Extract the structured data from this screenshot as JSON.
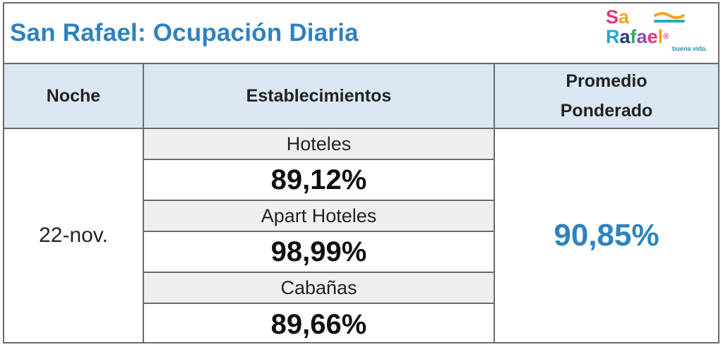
{
  "title": "San Rafael: Ocupación Diaria",
  "logo": {
    "line1": "Sa",
    "line2": "Rafael",
    "tagline": "buena vida.",
    "colors": [
      "#e2347d",
      "#f5a31a",
      "#25a9c9",
      "#243b7a",
      "#31a86b",
      "#8a4fb4"
    ]
  },
  "table": {
    "headers": {
      "noche": "Noche",
      "establecimientos": "Establecimientos",
      "promedio_line1": "Promedio",
      "promedio_line2": "Ponderado"
    },
    "noche": "22-nov.",
    "establecimientos": [
      {
        "label": "Hoteles",
        "value": "89,12%"
      },
      {
        "label": "Apart Hoteles",
        "value": "98,99%"
      },
      {
        "label": "Cabañas",
        "value": "89,66%"
      }
    ],
    "promedio_ponderado": "90,85%"
  },
  "colors": {
    "title_blue": "#2e82bf",
    "header_bg": "#dae6f2",
    "label_bg": "#efefef",
    "border": "#6b6b6b"
  }
}
